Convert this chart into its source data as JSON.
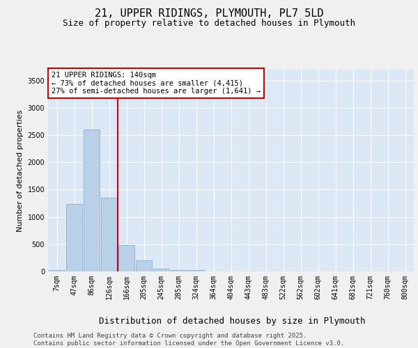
{
  "title": "21, UPPER RIDINGS, PLYMOUTH, PL7 5LD",
  "subtitle": "Size of property relative to detached houses in Plymouth",
  "xlabel": "Distribution of detached houses by size in Plymouth",
  "ylabel": "Number of detached properties",
  "categories": [
    "7sqm",
    "47sqm",
    "86sqm",
    "126sqm",
    "166sqm",
    "205sqm",
    "245sqm",
    "285sqm",
    "324sqm",
    "364sqm",
    "404sqm",
    "443sqm",
    "483sqm",
    "522sqm",
    "562sqm",
    "602sqm",
    "641sqm",
    "681sqm",
    "721sqm",
    "760sqm",
    "800sqm"
  ],
  "bar_values": [
    20,
    1240,
    2600,
    1350,
    490,
    200,
    50,
    30,
    20,
    5,
    0,
    0,
    0,
    0,
    0,
    0,
    0,
    0,
    0,
    0,
    0
  ],
  "bar_color": "#b8d0e8",
  "bar_edge_color": "#8ab0d0",
  "background_color": "#dce8f5",
  "grid_color": "#ffffff",
  "property_line_x": 3.5,
  "annotation_line1": "21 UPPER RIDINGS: 140sqm",
  "annotation_line2": "← 73% of detached houses are smaller (4,415)",
  "annotation_line3": "27% of semi-detached houses are larger (1,641) →",
  "annotation_box_edgecolor": "#cc0000",
  "red_line_color": "#cc0000",
  "ylim": [
    0,
    3700
  ],
  "yticks": [
    0,
    500,
    1000,
    1500,
    2000,
    2500,
    3000,
    3500
  ],
  "footer_line1": "Contains HM Land Registry data © Crown copyright and database right 2025.",
  "footer_line2": "Contains public sector information licensed under the Open Government Licence v3.0.",
  "title_fontsize": 11,
  "subtitle_fontsize": 9,
  "xlabel_fontsize": 9,
  "ylabel_fontsize": 8,
  "tick_fontsize": 7,
  "annotation_fontsize": 7.5,
  "footer_fontsize": 6.5,
  "fig_bgcolor": "#f0f0f0"
}
